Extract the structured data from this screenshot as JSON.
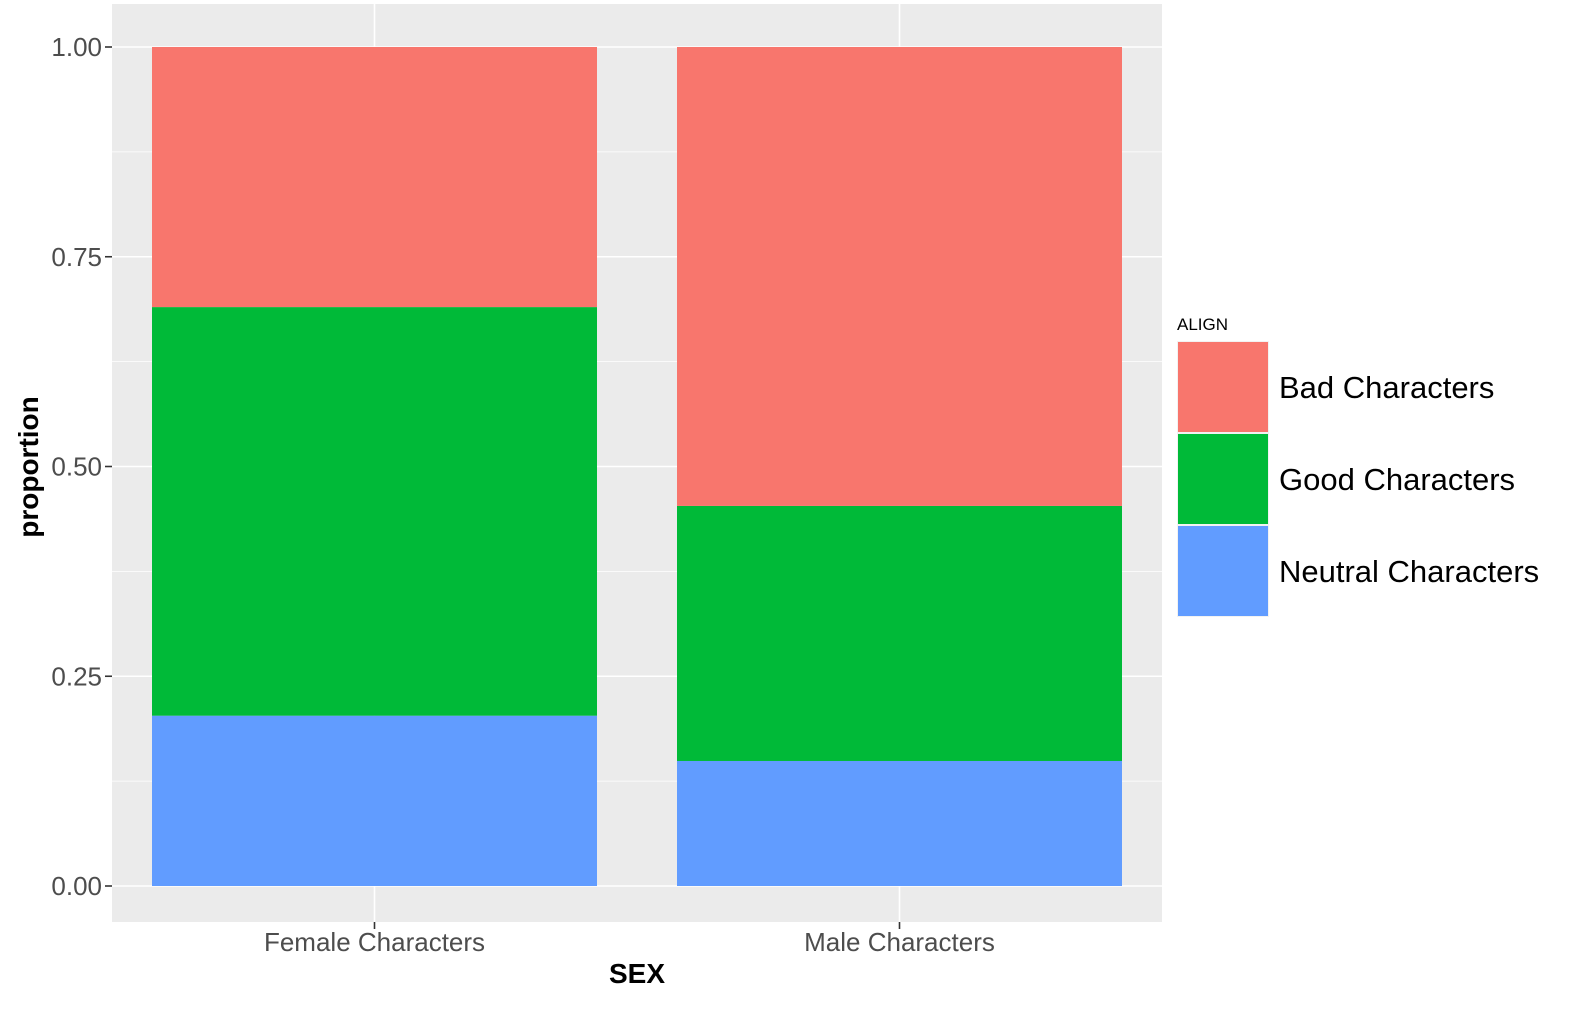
{
  "chart_data": {
    "type": "bar",
    "stacked": true,
    "position": "fill",
    "categories": [
      "Female Characters",
      "Male Characters"
    ],
    "series": [
      {
        "name": "Neutral Characters",
        "color": "#619CFF",
        "values": [
          0.203,
          0.149
        ]
      },
      {
        "name": "Good Characters",
        "color": "#00BA38",
        "values": [
          0.487,
          0.304
        ]
      },
      {
        "name": "Bad Characters",
        "color": "#F8766D",
        "values": [
          0.31,
          0.547
        ]
      }
    ],
    "xlabel": "SEX",
    "ylabel": "proportion",
    "ylim": [
      0,
      1
    ],
    "yticks": [
      0,
      0.25,
      0.5,
      0.75,
      1
    ],
    "ytick_labels": [
      "0.00",
      "0.25",
      "0.50",
      "0.75",
      "1.00"
    ],
    "legend": {
      "title": "ALIGN",
      "position": "right",
      "items": [
        "Bad Characters",
        "Good Characters",
        "Neutral Characters"
      ]
    },
    "grid": true,
    "panel_background": "#EBEBEB"
  }
}
